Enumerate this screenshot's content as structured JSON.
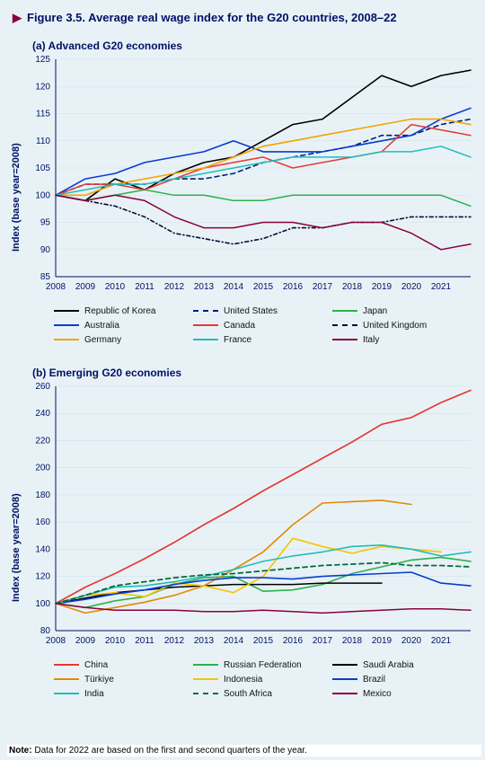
{
  "figure_title_prefix": "Figure 3.5.",
  "figure_title_rest": "  Average real wage index for the G20 countries, 2008–22",
  "note_label": "Note:",
  "note_text": " Data for 2022 are based on the first and second quarters of the year.",
  "panel_a": {
    "title": "(a) Advanced G20 economies",
    "y_label": "Index (base year=2008)",
    "years": [
      2008,
      2009,
      2010,
      2011,
      2012,
      2013,
      2014,
      2015,
      2016,
      2017,
      2018,
      2019,
      2020,
      2021,
      2022
    ],
    "y_min": 85,
    "y_max": 125,
    "y_step": 5,
    "bg": "#e8f2f6",
    "axis_color": "#001166",
    "grid_color": "#cfe1e9",
    "series": [
      {
        "name": "Republic of Korea",
        "color": "#000000",
        "dash": "",
        "width": 1.6,
        "vals": [
          100,
          99,
          103,
          101,
          104,
          106,
          107,
          110,
          113,
          114,
          118,
          122,
          120,
          122,
          123
        ]
      },
      {
        "name": "United States",
        "color": "#001f7a",
        "dash": "5 4",
        "width": 1.6,
        "vals": [
          100,
          102,
          102,
          102,
          103,
          103,
          104,
          106,
          107,
          108,
          109,
          111,
          111,
          113,
          114
        ]
      },
      {
        "name": "Japan",
        "color": "#2bb24c",
        "dash": "",
        "width": 1.5,
        "vals": [
          100,
          99,
          100,
          101,
          100,
          100,
          99,
          99,
          100,
          100,
          100,
          100,
          100,
          100,
          98
        ]
      },
      {
        "name": "Australia",
        "color": "#0a3bd1",
        "dash": "",
        "width": 1.6,
        "vals": [
          100,
          103,
          104,
          106,
          107,
          108,
          110,
          108,
          108,
          108,
          109,
          110,
          111,
          114,
          116
        ]
      },
      {
        "name": "Canada",
        "color": "#e53935",
        "dash": "",
        "width": 1.5,
        "vals": [
          100,
          102,
          102,
          101,
          103,
          105,
          106,
          107,
          105,
          106,
          107,
          108,
          113,
          112,
          111
        ]
      },
      {
        "name": "United Kingdom",
        "color": "#0a0a3a",
        "dash": "4 3 1 3",
        "width": 1.6,
        "vals": [
          100,
          99,
          98,
          96,
          93,
          92,
          91,
          92,
          94,
          94,
          95,
          95,
          96,
          96,
          96
        ]
      },
      {
        "name": "Germany",
        "color": "#f5a300",
        "dash": "",
        "width": 1.6,
        "vals": [
          100,
          100,
          102,
          103,
          104,
          105,
          107,
          109,
          110,
          111,
          112,
          113,
          114,
          114,
          113
        ]
      },
      {
        "name": "France",
        "color": "#22bcbc",
        "dash": "",
        "width": 1.5,
        "vals": [
          100,
          101,
          102,
          102,
          103,
          104,
          105,
          106,
          107,
          107,
          107,
          108,
          108,
          109,
          107
        ]
      },
      {
        "name": "Italy",
        "color": "#8a003a",
        "dash": "",
        "width": 1.5,
        "vals": [
          100,
          99,
          100,
          99,
          96,
          94,
          94,
          95,
          95,
          94,
          95,
          95,
          93,
          90,
          91
        ]
      }
    ],
    "legend_layout": [
      [
        "Republic of Korea",
        "Australia",
        "Germany"
      ],
      [
        "United States",
        "Canada",
        "France"
      ],
      [
        "Japan",
        "United Kingdom",
        "Italy"
      ]
    ]
  },
  "panel_b": {
    "title": "(b) Emerging G20 economies",
    "y_label": "Index (base year=2008)",
    "years": [
      2008,
      2009,
      2010,
      2011,
      2012,
      2013,
      2014,
      2015,
      2016,
      2017,
      2018,
      2019,
      2020,
      2021,
      2022
    ],
    "y_min": 80,
    "y_max": 260,
    "y_step": 20,
    "bg": "#e8f2f6",
    "axis_color": "#001166",
    "grid_color": "#cfe1e9",
    "series": [
      {
        "name": "China",
        "color": "#e53935",
        "dash": "",
        "width": 1.7,
        "vals": [
          100,
          112,
          122,
          133,
          145,
          158,
          170,
          183,
          195,
          207,
          219,
          232,
          237,
          248,
          257
        ]
      },
      {
        "name": "Russian Federation",
        "color": "#2bb24c",
        "dash": "",
        "width": 1.6,
        "vals": [
          100,
          97,
          102,
          105,
          114,
          119,
          120,
          109,
          110,
          114,
          122,
          127,
          132,
          134,
          131
        ]
      },
      {
        "name": "Saudi Arabia",
        "color": "#000000",
        "dash": "",
        "width": 1.5,
        "vals": [
          100,
          104,
          108,
          110,
          112,
          113,
          114,
          114,
          114,
          115,
          115,
          115,
          null,
          null,
          null
        ]
      },
      {
        "name": "Türkiye",
        "color": "#e38a00",
        "dash": "",
        "width": 1.6,
        "vals": [
          100,
          93,
          97,
          101,
          106,
          113,
          125,
          138,
          158,
          174,
          175,
          176,
          173,
          null,
          null
        ]
      },
      {
        "name": "Indonesia",
        "color": "#f5c400",
        "dash": "",
        "width": 1.6,
        "vals": [
          100,
          106,
          108,
          105,
          115,
          113,
          108,
          120,
          148,
          142,
          137,
          142,
          140,
          138,
          null
        ]
      },
      {
        "name": "Brazil",
        "color": "#0a3bd1",
        "dash": "",
        "width": 1.6,
        "vals": [
          100,
          103,
          107,
          110,
          114,
          117,
          119,
          119,
          118,
          120,
          121,
          122,
          123,
          115,
          113
        ]
      },
      {
        "name": "India",
        "color": "#22bcbc",
        "dash": "",
        "width": 1.6,
        "vals": [
          100,
          106,
          112,
          113,
          116,
          120,
          125,
          131,
          135,
          138,
          142,
          143,
          140,
          135,
          138
        ]
      },
      {
        "name": "South Africa",
        "color": "#0b6b3a",
        "dash": "5 4",
        "width": 1.8,
        "vals": [
          100,
          106,
          113,
          116,
          119,
          121,
          122,
          124,
          126,
          128,
          129,
          130,
          128,
          128,
          127
        ]
      },
      {
        "name": "Mexico",
        "color": "#8a003a",
        "dash": "",
        "width": 1.5,
        "vals": [
          100,
          97,
          95,
          95,
          95,
          94,
          94,
          95,
          94,
          93,
          94,
          95,
          96,
          96,
          95
        ]
      }
    ],
    "legend_layout": [
      [
        "China",
        "Türkiye",
        "India"
      ],
      [
        "Russian Federation",
        "Indonesia",
        "South Africa"
      ],
      [
        "Saudi Arabia",
        "Brazil",
        "Mexico"
      ]
    ]
  }
}
